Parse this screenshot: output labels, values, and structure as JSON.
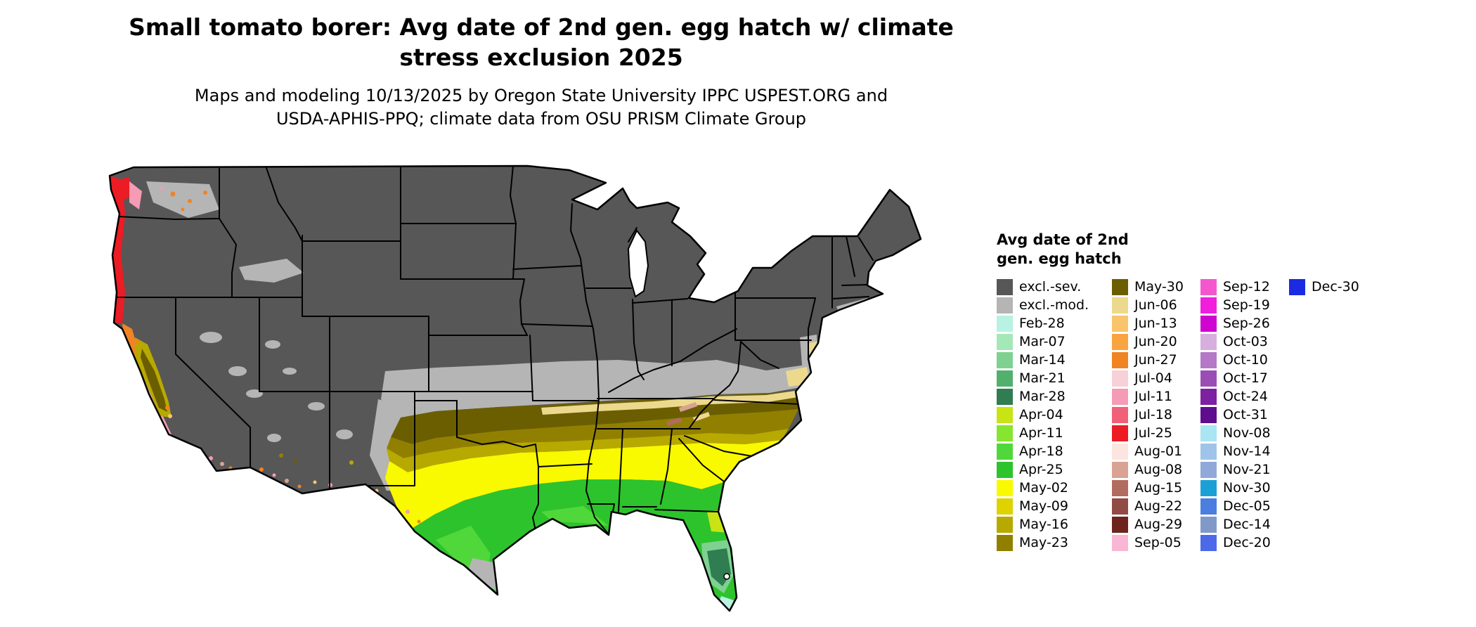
{
  "header": {
    "title": "Small tomato borer: Avg date of 2nd gen. egg hatch w/ climate stress exclusion 2025",
    "subtitle": "Maps and modeling 10/13/2025 by Oregon State University IPPC USPEST.ORG and USDA-APHIS-PPQ; climate data from OSU PRISM Climate Group"
  },
  "legend": {
    "title_lines": [
      "Avg date of 2nd",
      "gen. egg hatch"
    ],
    "columns": [
      [
        {
          "label": "excl.-sev.",
          "color": "#575757"
        },
        {
          "label": "excl.-mod.",
          "color": "#b5b5b5"
        },
        {
          "label": "Feb-28",
          "color": "#b8f2e2"
        },
        {
          "label": "Mar-07",
          "color": "#a5e8b8"
        },
        {
          "label": "Mar-14",
          "color": "#7ed191"
        },
        {
          "label": "Mar-21",
          "color": "#52b06d"
        },
        {
          "label": "Mar-28",
          "color": "#2f7d50"
        },
        {
          "label": "Apr-04",
          "color": "#c8e414"
        },
        {
          "label": "Apr-11",
          "color": "#86e52e"
        },
        {
          "label": "Apr-18",
          "color": "#50d83a"
        },
        {
          "label": "Apr-25",
          "color": "#2dc32d"
        },
        {
          "label": "May-02",
          "color": "#f9f900"
        },
        {
          "label": "May-09",
          "color": "#ded200"
        },
        {
          "label": "May-16",
          "color": "#b7a900"
        },
        {
          "label": "May-23",
          "color": "#918000"
        }
      ],
      [
        {
          "label": "May-30",
          "color": "#6b5e00"
        },
        {
          "label": "Jun-06",
          "color": "#ecd98e"
        },
        {
          "label": "Jun-13",
          "color": "#f8c56c"
        },
        {
          "label": "Jun-20",
          "color": "#f8a440"
        },
        {
          "label": "Jun-27",
          "color": "#f08423"
        },
        {
          "label": "Jul-04",
          "color": "#f7d0d9"
        },
        {
          "label": "Jul-11",
          "color": "#f59bb5"
        },
        {
          "label": "Jul-18",
          "color": "#f06076"
        },
        {
          "label": "Jul-25",
          "color": "#eb1c24"
        },
        {
          "label": "Aug-01",
          "color": "#fce4df"
        },
        {
          "label": "Aug-08",
          "color": "#d9a292"
        },
        {
          "label": "Aug-15",
          "color": "#b16b5f"
        },
        {
          "label": "Aug-22",
          "color": "#904b43"
        },
        {
          "label": "Aug-29",
          "color": "#6c241c"
        },
        {
          "label": "Sep-05",
          "color": "#fab6d5"
        }
      ],
      [
        {
          "label": "Sep-12",
          "color": "#f457cd"
        },
        {
          "label": "Sep-19",
          "color": "#f11ede"
        },
        {
          "label": "Sep-26",
          "color": "#d004d0"
        },
        {
          "label": "Oct-03",
          "color": "#d6afdf"
        },
        {
          "label": "Oct-10",
          "color": "#b478c7"
        },
        {
          "label": "Oct-17",
          "color": "#9b4db6"
        },
        {
          "label": "Oct-24",
          "color": "#7d20a1"
        },
        {
          "label": "Oct-31",
          "color": "#5f0d8f"
        },
        {
          "label": "Nov-08",
          "color": "#a9e5f3"
        },
        {
          "label": "Nov-14",
          "color": "#a0c4e9"
        },
        {
          "label": "Nov-21",
          "color": "#90a9d9"
        },
        {
          "label": "Nov-30",
          "color": "#1ba0d5"
        },
        {
          "label": "Dec-05",
          "color": "#4b7ee1"
        },
        {
          "label": "Dec-14",
          "color": "#8199c9"
        },
        {
          "label": "Dec-20",
          "color": "#4b69e9"
        }
      ],
      [
        {
          "label": "Dec-30",
          "color": "#1b2be1"
        }
      ]
    ]
  },
  "map_palette": {
    "background": "#ffffff",
    "excl_sev": "#575757",
    "excl_mod": "#b5b5b5",
    "tan": "#ecd98e",
    "light_orange": "#f8c56c",
    "orange": "#f08423",
    "dark_olive": "#6b5e00",
    "olive": "#918000",
    "olive_yellow": "#b7a900",
    "yellow": "#f9f900",
    "yellow_green": "#c8e414",
    "green": "#2dc32d",
    "bright_green": "#50d83a",
    "sea_green": "#7ed191",
    "dark_green": "#2f7d50",
    "pale_cyan": "#b8f2e2",
    "red": "#eb1c24",
    "dark_pink": "#f06076",
    "pink": "#f59bb5",
    "pale_pink": "#f7d0d9",
    "tan_brown": "#d9a292",
    "brown": "#b16b5f",
    "water": "#ffffff",
    "border": "#000000"
  }
}
